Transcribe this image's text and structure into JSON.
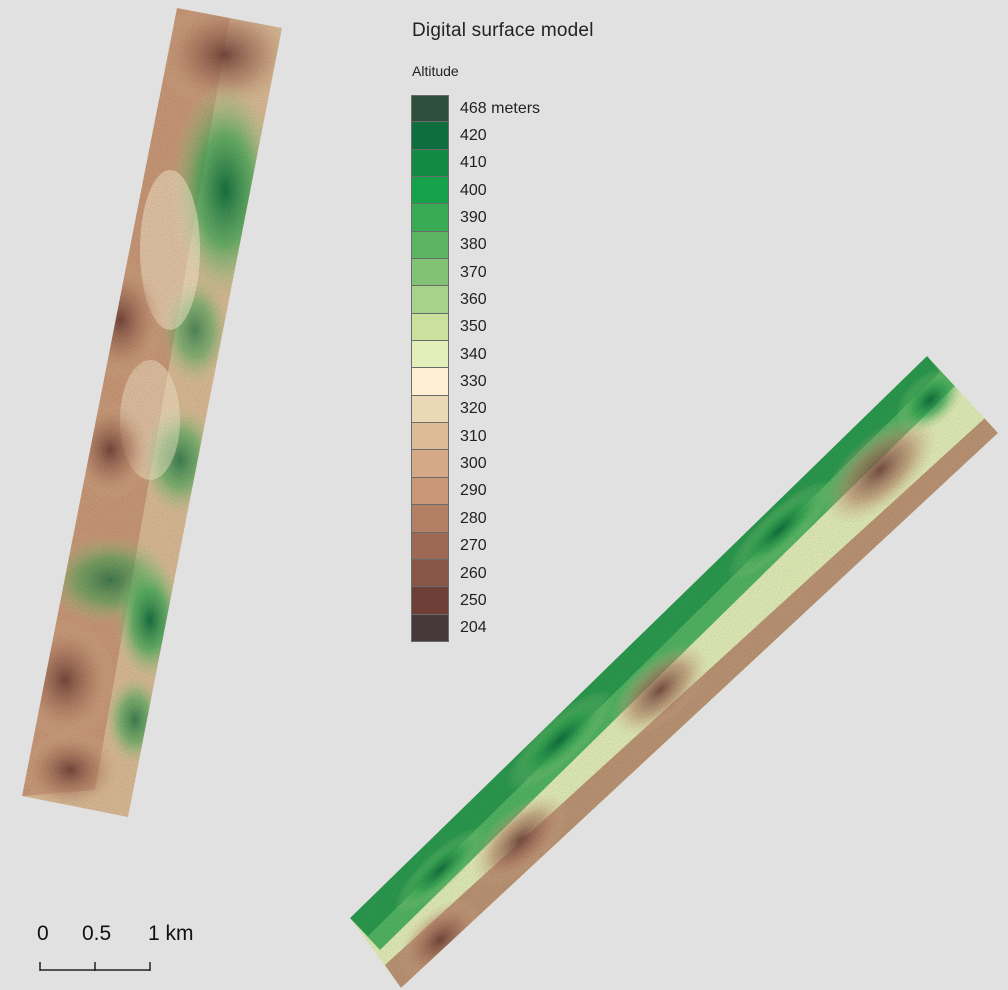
{
  "title": "Digital surface model",
  "legend": {
    "title": "Altitude",
    "items": [
      {
        "label": "468 meters",
        "color": "#2f4f3c"
      },
      {
        "label": "420",
        "color": "#0f6e3d"
      },
      {
        "label": "410",
        "color": "#128a43"
      },
      {
        "label": "400",
        "color": "#16a24b"
      },
      {
        "label": "390",
        "color": "#3aab55"
      },
      {
        "label": "380",
        "color": "#5db463"
      },
      {
        "label": "370",
        "color": "#82c274"
      },
      {
        "label": "360",
        "color": "#a7d289"
      },
      {
        "label": "350",
        "color": "#cbe09c"
      },
      {
        "label": "340",
        "color": "#e3efb9"
      },
      {
        "label": "330",
        "color": "#fdf0d3"
      },
      {
        "label": "320",
        "color": "#ebd9b5"
      },
      {
        "label": "310",
        "color": "#dcbc97"
      },
      {
        "label": "300",
        "color": "#d3aa85"
      },
      {
        "label": "290",
        "color": "#c99676"
      },
      {
        "label": "280",
        "color": "#b48065"
      },
      {
        "label": "270",
        "color": "#9c6955"
      },
      {
        "label": "260",
        "color": "#875645"
      },
      {
        "label": "250",
        "color": "#6e3f37"
      },
      {
        "label": "204",
        "color": "#46393c"
      }
    ]
  },
  "scale_bar": {
    "labels": [
      "0",
      "0.5",
      "1 km"
    ]
  }
}
